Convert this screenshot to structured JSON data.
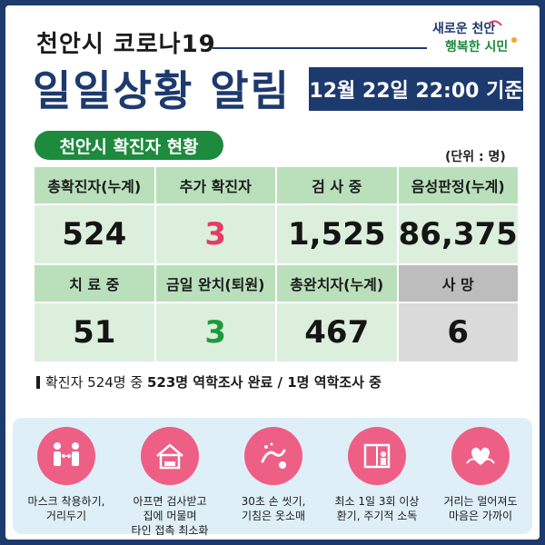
{
  "header": {
    "subtitle": "천안시 코로나19",
    "title": "일일상황 알림",
    "date": "12월 22일 22:00 기준",
    "logo_line1": "새로운 천안",
    "logo_line2": "행복한 시민"
  },
  "section": {
    "pill": "천안시 확진자 현황",
    "unit": "(단위 : 명)"
  },
  "stats": {
    "row1": [
      {
        "label": "총확진자(누계)",
        "value": "524"
      },
      {
        "label": "추가 확진자",
        "value": "3"
      },
      {
        "label": "검 사 중",
        "value": "1,525"
      },
      {
        "label": "음성판정(누계)",
        "value": "86,375"
      }
    ],
    "row2": [
      {
        "label": "치 료 중",
        "value": "51"
      },
      {
        "label": "금일 완치(퇴원)",
        "value": "3"
      },
      {
        "label": "총완치자(누계)",
        "value": "467"
      },
      {
        "label": "사  망",
        "value": "6"
      }
    ]
  },
  "note": {
    "prefix": "확진자 524명 중",
    "bold": "523명 역학조사 완료 / 1명 역학조사 중"
  },
  "guidelines": [
    {
      "icon": "mask-distance-icon",
      "label": "마스크 착용하기,\n거리두기"
    },
    {
      "icon": "home-stay-icon",
      "label": "아프면 검사받고\n집에 머물며\n타인 접촉 최소화"
    },
    {
      "icon": "hand-wash-icon",
      "label": "30초 손 씻기,\n기침은 옷소매"
    },
    {
      "icon": "ventilation-icon",
      "label": "최소 1일 3회 이상\n환기, 주기적 소독"
    },
    {
      "icon": "heart-hands-icon",
      "label": "거리는 멀어져도\n마음은 가까이"
    }
  ],
  "colors": {
    "navy": "#1d3a6e",
    "green": "#1e8a3d",
    "pink": "#ee5f86",
    "red_value": "#e53a64",
    "green_value": "#1e9a3d"
  }
}
